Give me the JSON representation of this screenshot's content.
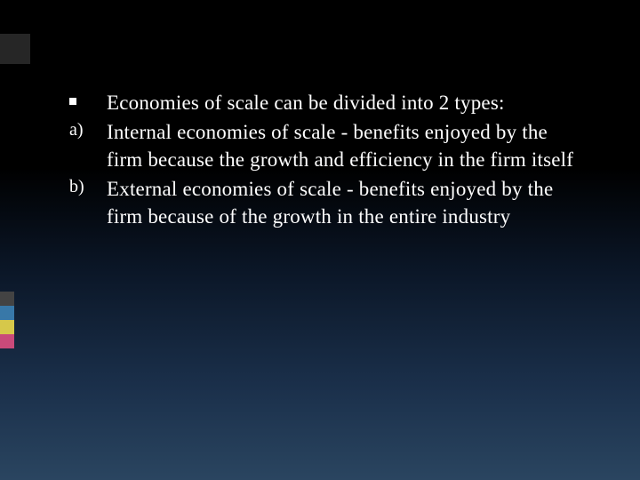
{
  "slide": {
    "background": {
      "gradient_start": "#000000",
      "gradient_mid": "#1a2f4a",
      "gradient_end": "#2a4560"
    },
    "top_accent_color": "#262626",
    "left_stripes": [
      {
        "color": "#434343"
      },
      {
        "color": "#3878a8"
      },
      {
        "color": "#d6c84a"
      },
      {
        "color": "#c94a7a"
      }
    ],
    "items": [
      {
        "marker_type": "square",
        "text": "Economies of scale can be divided into 2 types:"
      },
      {
        "marker_type": "alpha",
        "marker": "a)",
        "text": "Internal economies of scale - benefits enjoyed by the firm because the growth and efficiency in the firm itself"
      },
      {
        "marker_type": "alpha",
        "marker": "b)",
        "text": "External economies of scale - benefits enjoyed by the firm because of the growth in the entire industry"
      }
    ],
    "typography": {
      "font_family": "Georgia, serif",
      "body_fontsize": 23,
      "marker_fontsize": 20,
      "text_color": "#ffffff"
    }
  }
}
